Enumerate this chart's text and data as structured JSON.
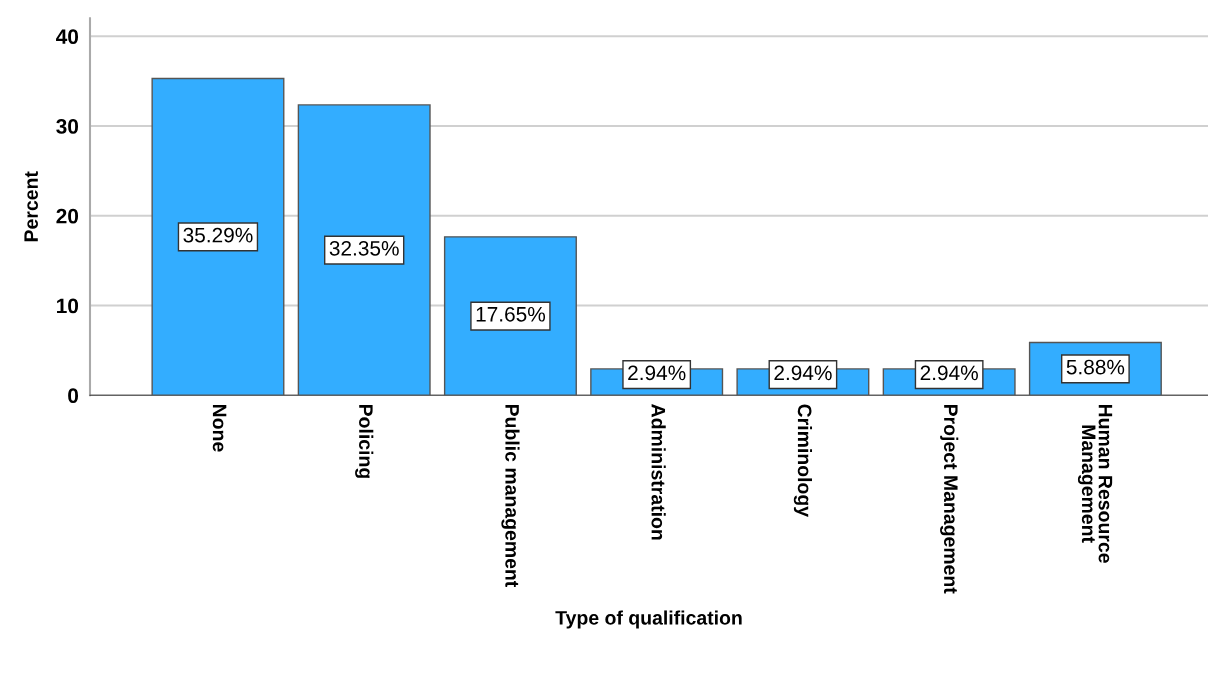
{
  "chart_data": {
    "type": "bar",
    "xlabel": "Type of qualification",
    "ylabel": "Percent",
    "categories": [
      "None",
      "Policing",
      "Public management",
      "Administration",
      "Criminology",
      "Project Management",
      "Human Resource\nManagement"
    ],
    "values": [
      35.29,
      32.35,
      17.65,
      2.94,
      2.94,
      2.94,
      5.88
    ],
    "value_labels": [
      "35.29%",
      "32.35%",
      "17.65%",
      "2.94%",
      "2.94%",
      "2.94%",
      "5.88%"
    ],
    "color": "#33adff",
    "ylim": [
      0,
      42
    ],
    "yticks": [
      0,
      10,
      20,
      30,
      40
    ],
    "grid": "y"
  }
}
